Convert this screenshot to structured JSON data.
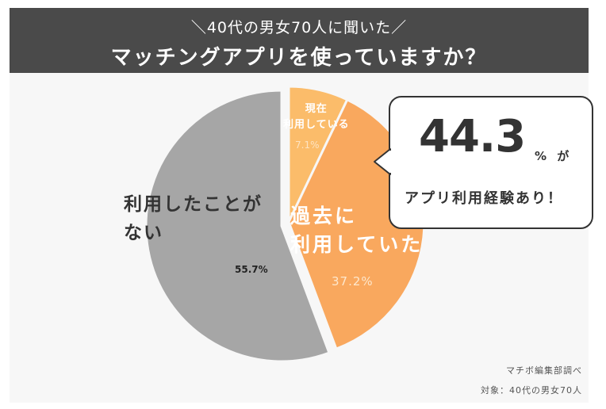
{
  "header": {
    "line1": "＼40代の男女70人に聞いた／",
    "line2": "マッチングアプリを使っていますか？"
  },
  "chart_data": {
    "type": "pie",
    "title": "マッチングアプリを使っていますか？",
    "subtitle": "＼40代の男女70人に聞いた／",
    "slices": [
      {
        "label": "現在利用している",
        "value": 7.1,
        "pct_label": "7.1%",
        "color": "#fbbc6a"
      },
      {
        "label": "過去に利用していた",
        "value": 37.2,
        "pct_label": "37.2%",
        "color": "#f9a85e"
      },
      {
        "label": "利用したことがない",
        "value": 55.7,
        "pct_label": "55.7%",
        "color": "#a6a6a6"
      }
    ]
  },
  "labels": {
    "current_line1": "現在",
    "current_line2": "利用している",
    "past_line1": "過去に",
    "past_line2": "利用していた",
    "never_line1": "利用したことが",
    "never_line2": "ない"
  },
  "callout": {
    "value": "44.3",
    "suffix": "% が",
    "text": "アプリ利用経験あり！"
  },
  "footer": {
    "source": "マチボ編集部調べ",
    "target": "対象：40代の男女70人"
  }
}
